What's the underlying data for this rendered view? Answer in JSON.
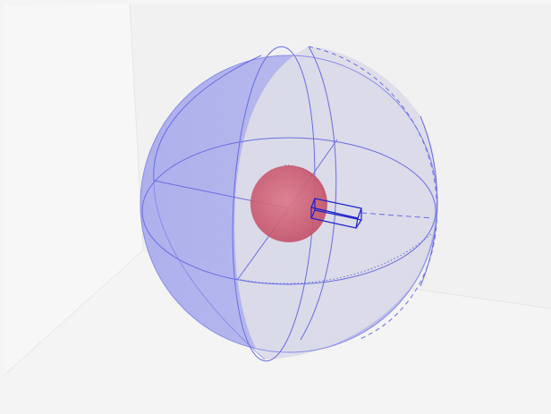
{
  "scene": {
    "background": "#f6f6f6",
    "back_wall_color": "#f1f1f1",
    "floor_color": "#f3f3f3",
    "outer_sphere": {
      "fill": "#a9acea",
      "fill_light": "#d9d9e8",
      "edge_color": "#5c5fe0"
    },
    "inner_sphere": {
      "fill": "#d4667a",
      "fill_dark": "#c4566e"
    },
    "box": {
      "edge_color": "#1e22c8"
    }
  }
}
